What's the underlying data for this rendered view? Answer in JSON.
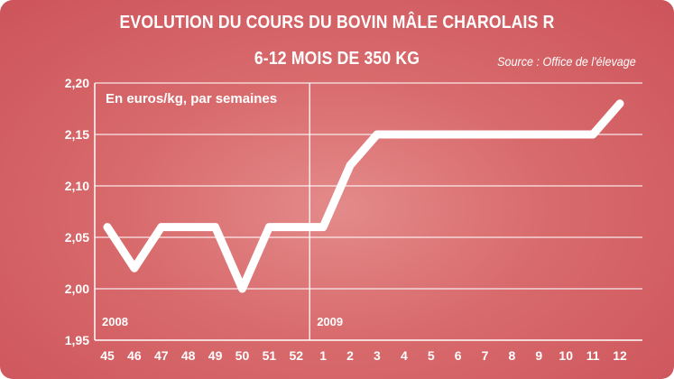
{
  "title_line1": "EVOLUTION DU COURS DU BOVIN MÂLE CHAROLAIS R",
  "title_line2": "6-12 MOIS DE 350 KG",
  "source": "Source : Office de l'élevage",
  "colors": {
    "background": "#d86a6c",
    "line": "#ffffff",
    "grid": "#ffffff",
    "text": "#ffffff"
  },
  "chart_data": {
    "type": "line",
    "unit_label": "En euros/kg, par semaines",
    "yticks": [
      "1,95",
      "2,00",
      "2,05",
      "2,10",
      "2,15",
      "2,20"
    ],
    "ylim": [
      1.95,
      2.2
    ],
    "grid": true,
    "categories": [
      "45",
      "46",
      "47",
      "48",
      "49",
      "50",
      "51",
      "52",
      "1",
      "2",
      "3",
      "4",
      "5",
      "6",
      "7",
      "8",
      "9",
      "10",
      "11",
      "12"
    ],
    "year_labels": [
      {
        "text": "2008",
        "start_category": "45"
      },
      {
        "text": "2009",
        "start_category": "1"
      }
    ],
    "series": [
      {
        "values": [
          2.06,
          2.02,
          2.06,
          2.06,
          2.06,
          2.0,
          2.06,
          2.06,
          2.06,
          2.12,
          2.15,
          2.15,
          2.15,
          2.15,
          2.15,
          2.15,
          2.15,
          2.15,
          2.15,
          2.18
        ]
      }
    ]
  }
}
